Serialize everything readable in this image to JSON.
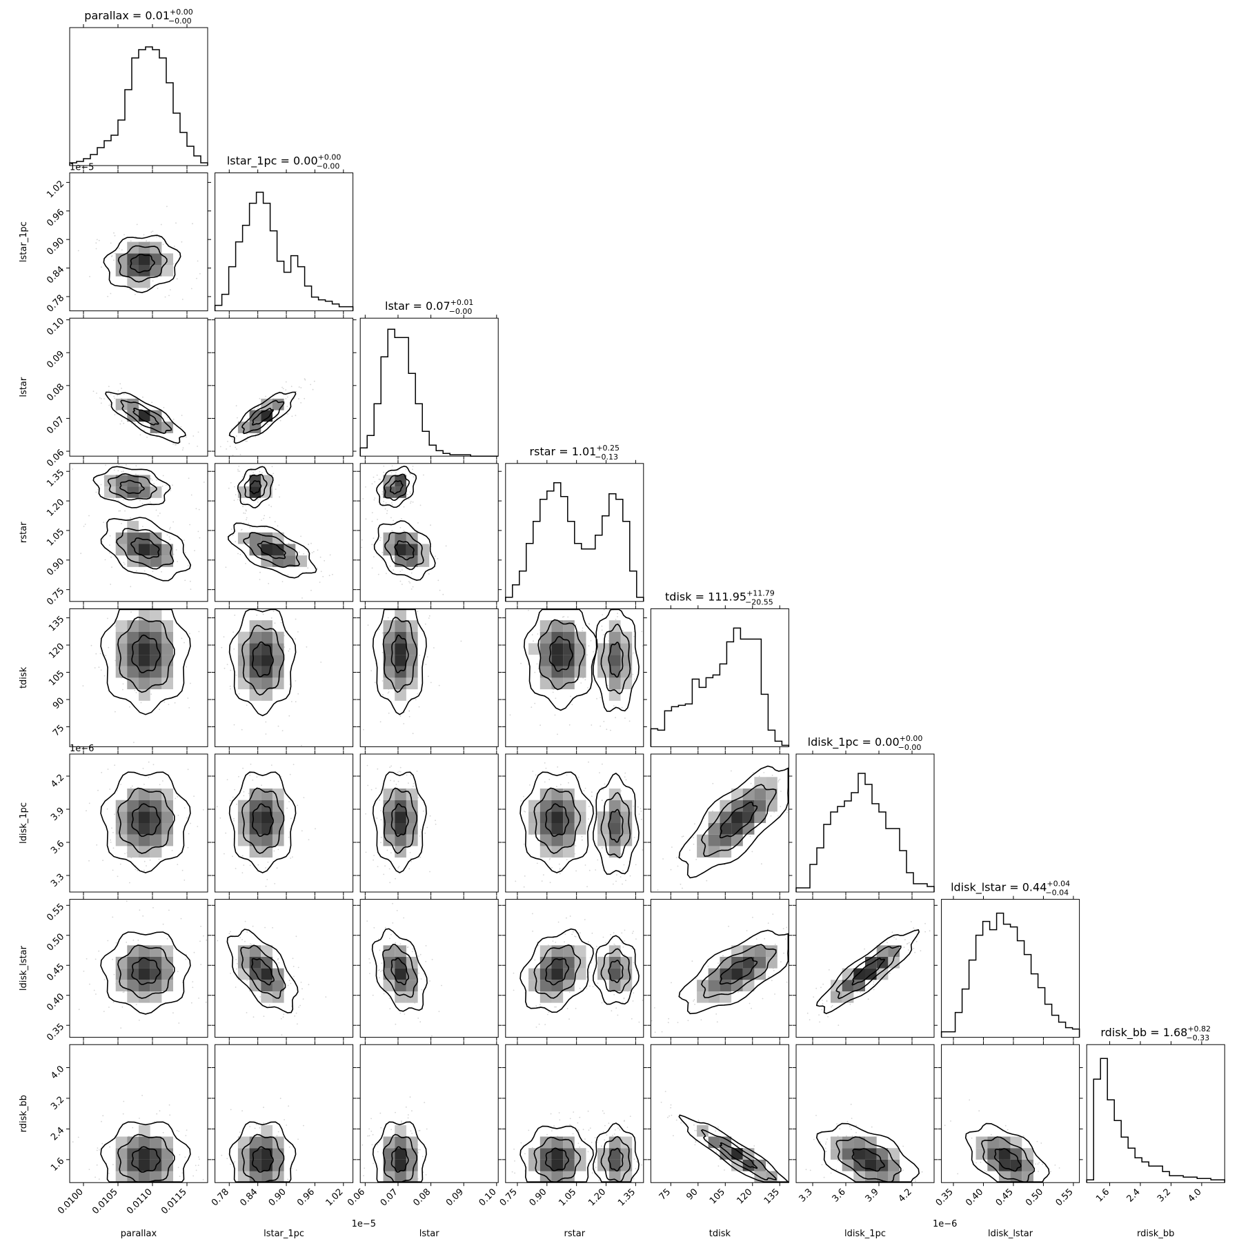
{
  "figure": {
    "params": [
      "parallax",
      "lstar_1pc",
      "lstar",
      "rstar",
      "tdisk",
      "ldisk_1pc",
      "ldisk_lstar",
      "rdisk_bb"
    ],
    "axis_labels": [
      "parallax",
      "lstar_1pc",
      "lstar",
      "rstar",
      "tdisk",
      "ldisk_1pc",
      "ldisk_lstar",
      "rdisk_bb"
    ]
  },
  "titles": [
    {
      "param": "parallax",
      "main": "parallax = 0.01",
      "sup": "+0.00",
      "sub": "−0.00"
    },
    {
      "param": "lstar_1pc",
      "main": "lstar_1pc = 0.00",
      "sup": "+0.00",
      "sub": "−0.00"
    },
    {
      "param": "lstar",
      "main": "lstar = 0.07",
      "sup": "+0.01",
      "sub": "−0.00"
    },
    {
      "param": "rstar",
      "main": "rstar = 1.01",
      "sup": "+0.25",
      "sub": "−0.13"
    },
    {
      "param": "tdisk",
      "main": "tdisk = 111.95",
      "sup": "+11.79",
      "sub": "−20.55"
    },
    {
      "param": "ldisk_1pc",
      "main": "ldisk_1pc = 0.00",
      "sup": "+0.00",
      "sub": "−0.00"
    },
    {
      "param": "ldisk_lstar",
      "main": "ldisk_lstar = 0.44",
      "sup": "+0.04",
      "sub": "−0.04"
    },
    {
      "param": "rdisk_bb",
      "main": "rdisk_bb = 1.68",
      "sup": "+0.82",
      "sub": "−0.33"
    }
  ],
  "offset_labels": {
    "lstar_1pc_y": "1e−5",
    "lstar_1pc_x": "1e−5",
    "ldisk_1pc_y": "1e−6",
    "ldisk_1pc_x": "1e−6"
  },
  "chart_data": {
    "type": "corner",
    "params": [
      "parallax",
      "lstar_1pc",
      "lstar",
      "rstar",
      "tdisk",
      "ldisk_1pc",
      "ldisk_lstar",
      "rdisk_bb"
    ],
    "ranges": {
      "parallax": [
        0.0098,
        0.0118
      ],
      "lstar_1pc": [
        7.5e-06,
        1.04e-05
      ],
      "lstar": [
        0.0585,
        0.1005
      ],
      "rstar": [
        0.69,
        1.39
      ],
      "tdisk": [
        64,
        140
      ],
      "ldisk_1pc": [
        3.15e-06,
        4.4e-06
      ],
      "ldisk_lstar": [
        0.33,
        0.56
      ],
      "rdisk_bb": [
        1.0,
        4.6
      ]
    },
    "ticks": {
      "parallax": {
        "values": [
          0.01,
          0.0105,
          0.011,
          0.0115
        ],
        "labels": [
          "0.0100",
          "0.0105",
          "0.0110",
          "0.0115"
        ]
      },
      "lstar_1pc": {
        "values": [
          7.8e-06,
          8.4e-06,
          9e-06,
          9.6e-06,
          1.02e-05
        ],
        "labels": [
          "0.78",
          "0.84",
          "0.90",
          "0.96",
          "1.02"
        ]
      },
      "lstar": {
        "values": [
          0.06,
          0.07,
          0.08,
          0.09,
          0.1
        ],
        "labels": [
          "0.06",
          "0.07",
          "0.08",
          "0.09",
          "0.10"
        ]
      },
      "rstar": {
        "values": [
          0.75,
          0.9,
          1.05,
          1.2,
          1.35
        ],
        "labels": [
          "0.75",
          "0.90",
          "1.05",
          "1.20",
          "1.35"
        ]
      },
      "tdisk": {
        "values": [
          75,
          90,
          105,
          120,
          135
        ],
        "labels": [
          "75",
          "90",
          "105",
          "120",
          "135"
        ]
      },
      "ldisk_1pc": {
        "values": [
          3.3e-06,
          3.6e-06,
          3.9e-06,
          4.2e-06
        ],
        "labels": [
          "3.3",
          "3.6",
          "3.9",
          "4.2"
        ]
      },
      "ldisk_lstar": {
        "values": [
          0.35,
          0.4,
          0.45,
          0.5,
          0.55
        ],
        "labels": [
          "0.35",
          "0.40",
          "0.45",
          "0.50",
          "0.55"
        ]
      },
      "rdisk_bb": {
        "values": [
          1.6,
          2.4,
          3.2,
          4.0
        ],
        "labels": [
          "1.6",
          "2.4",
          "3.2",
          "4.0"
        ]
      }
    },
    "histograms": {
      "parallax": [
        0.02,
        0.03,
        0.05,
        0.08,
        0.13,
        0.18,
        0.22,
        0.33,
        0.55,
        0.78,
        0.84,
        0.86,
        0.84,
        0.78,
        0.6,
        0.38,
        0.24,
        0.14,
        0.07,
        0.02
      ],
      "lstar_1pc": [
        0.04,
        0.12,
        0.32,
        0.5,
        0.62,
        0.78,
        0.86,
        0.78,
        0.58,
        0.36,
        0.28,
        0.4,
        0.32,
        0.18,
        0.1,
        0.08,
        0.07,
        0.05,
        0.03,
        0.03
      ],
      "lstar": [
        0.06,
        0.15,
        0.38,
        0.72,
        0.92,
        0.86,
        0.86,
        0.6,
        0.38,
        0.18,
        0.08,
        0.04,
        0.02,
        0.01,
        0.01,
        0.01,
        0.0,
        0.0,
        0.0,
        0.0
      ],
      "rstar": [
        0.03,
        0.12,
        0.22,
        0.42,
        0.58,
        0.74,
        0.8,
        0.86,
        0.76,
        0.58,
        0.42,
        0.38,
        0.38,
        0.48,
        0.62,
        0.78,
        0.74,
        0.58,
        0.22,
        0.03
      ],
      "tdisk": [
        0.13,
        0.12,
        0.26,
        0.29,
        0.3,
        0.31,
        0.49,
        0.43,
        0.5,
        0.52,
        0.6,
        0.76,
        0.86,
        0.78,
        0.78,
        0.78,
        0.38,
        0.12,
        0.04,
        0.01
      ],
      "ldisk_1pc": [
        0.03,
        0.03,
        0.2,
        0.32,
        0.49,
        0.58,
        0.62,
        0.66,
        0.72,
        0.86,
        0.78,
        0.64,
        0.58,
        0.46,
        0.46,
        0.3,
        0.14,
        0.06,
        0.06,
        0.04
      ],
      "ldisk_lstar": [
        0.04,
        0.04,
        0.18,
        0.35,
        0.56,
        0.74,
        0.84,
        0.78,
        0.9,
        0.82,
        0.8,
        0.7,
        0.6,
        0.46,
        0.36,
        0.24,
        0.16,
        0.11,
        0.07,
        0.06
      ],
      "rdisk_bb": [
        0.02,
        0.75,
        0.9,
        0.6,
        0.45,
        0.33,
        0.25,
        0.18,
        0.15,
        0.12,
        0.12,
        0.08,
        0.05,
        0.05,
        0.04,
        0.04,
        0.03,
        0.03,
        0.02,
        0.02
      ]
    },
    "peaks": {
      "lstar_1pc|parallax": [
        {
          "x": 0.01085,
          "y": 8.5e-06,
          "a": 1.0,
          "sx": 0.00024,
          "sy": 2.6e-07,
          "rho": 0.1
        }
      ],
      "lstar|parallax": [
        {
          "x": 0.0109,
          "y": 0.0705,
          "a": 1.0,
          "sx": 0.00025,
          "sy": 0.0034,
          "rho": -0.8
        }
      ],
      "lstar|lstar_1pc": [
        {
          "x": 8.5e-06,
          "y": 0.0705,
          "a": 1.0,
          "sx": 3e-07,
          "sy": 0.0034,
          "rho": 0.8
        }
      ],
      "rstar|parallax": [
        {
          "x": 0.0107,
          "y": 1.27,
          "a": 0.9,
          "sx": 0.00024,
          "sy": 0.045,
          "rho": -0.2
        },
        {
          "x": 0.0109,
          "y": 0.96,
          "a": 1.0,
          "sx": 0.00028,
          "sy": 0.07,
          "rho": -0.4
        }
      ],
      "rstar|lstar_1pc": [
        {
          "x": 8.35e-06,
          "y": 1.27,
          "a": 1.0,
          "sx": 1.6e-07,
          "sy": 0.045,
          "rho": 0.2
        },
        {
          "x": 8.7e-06,
          "y": 0.95,
          "a": 0.9,
          "sx": 4e-07,
          "sy": 0.06,
          "rho": -0.6
        }
      ],
      "rstar|lstar": [
        {
          "x": 0.0695,
          "y": 1.27,
          "a": 1.0,
          "sx": 0.0026,
          "sy": 0.045,
          "rho": 0.3
        },
        {
          "x": 0.072,
          "y": 0.95,
          "a": 0.9,
          "sx": 0.004,
          "sy": 0.065,
          "rho": -0.3
        }
      ],
      "tdisk|parallax": [
        {
          "x": 0.0109,
          "y": 115,
          "a": 1.0,
          "sx": 0.00028,
          "sy": 14,
          "rho": 0.0
        }
      ],
      "tdisk|lstar_1pc": [
        {
          "x": 8.5e-06,
          "y": 112,
          "a": 1.0,
          "sx": 3e-07,
          "sy": 13,
          "rho": 0.0
        }
      ],
      "tdisk|lstar": [
        {
          "x": 0.0705,
          "y": 115,
          "a": 1.0,
          "sx": 0.0035,
          "sy": 14,
          "rho": 0.0
        }
      ],
      "tdisk|rstar": [
        {
          "x": 0.97,
          "y": 115,
          "a": 1.0,
          "sx": 0.08,
          "sy": 13,
          "rho": 0.0
        },
        {
          "x": 1.25,
          "y": 112,
          "a": 0.75,
          "sx": 0.05,
          "sy": 13,
          "rho": 0.0
        }
      ],
      "ldisk_1pc|parallax": [
        {
          "x": 0.0109,
          "y": 3.8e-06,
          "a": 1.0,
          "sx": 0.00028,
          "sy": 2e-07,
          "rho": 0.0
        }
      ],
      "ldisk_1pc|lstar_1pc": [
        {
          "x": 8.5e-06,
          "y": 3.8e-06,
          "a": 1.0,
          "sx": 3e-07,
          "sy": 2e-07,
          "rho": 0.0
        }
      ],
      "ldisk_1pc|lstar": [
        {
          "x": 0.0705,
          "y": 3.8e-06,
          "a": 1.0,
          "sx": 0.0035,
          "sy": 2e-07,
          "rho": 0.0
        }
      ],
      "ldisk_1pc|rstar": [
        {
          "x": 0.95,
          "y": 3.8e-06,
          "a": 1.0,
          "sx": 0.08,
          "sy": 2e-07,
          "rho": 0.0
        },
        {
          "x": 1.25,
          "y": 3.75e-06,
          "a": 0.8,
          "sx": 0.05,
          "sy": 2e-07,
          "rho": 0.0
        }
      ],
      "ldisk_1pc|tdisk": [
        {
          "x": 112,
          "y": 3.8e-06,
          "a": 1.0,
          "sx": 14,
          "sy": 2.2e-07,
          "rho": 0.75
        }
      ],
      "ldisk_lstar|parallax": [
        {
          "x": 0.0109,
          "y": 0.44,
          "a": 1.0,
          "sx": 0.00028,
          "sy": 0.03,
          "rho": 0.0
        }
      ],
      "ldisk_lstar|lstar_1pc": [
        {
          "x": 8.5e-06,
          "y": 0.44,
          "a": 1.0,
          "sx": 3.2e-07,
          "sy": 0.03,
          "rho": -0.6
        }
      ],
      "ldisk_lstar|lstar": [
        {
          "x": 0.0705,
          "y": 0.44,
          "a": 1.0,
          "sx": 0.0036,
          "sy": 0.03,
          "rho": -0.4
        }
      ],
      "ldisk_lstar|rstar": [
        {
          "x": 0.95,
          "y": 0.44,
          "a": 1.0,
          "sx": 0.08,
          "sy": 0.03,
          "rho": 0.3
        },
        {
          "x": 1.25,
          "y": 0.44,
          "a": 0.8,
          "sx": 0.05,
          "sy": 0.025,
          "rho": 0.0
        }
      ],
      "ldisk_lstar|tdisk": [
        {
          "x": 112,
          "y": 0.44,
          "a": 1.0,
          "sx": 14,
          "sy": 0.03,
          "rho": 0.7
        }
      ],
      "ldisk_lstar|ldisk_1pc": [
        {
          "x": 3.8e-06,
          "y": 0.44,
          "a": 1.0,
          "sx": 2e-07,
          "sy": 0.03,
          "rho": 0.88
        }
      ],
      "rdisk_bb|parallax": [
        {
          "x": 0.0109,
          "y": 1.6,
          "a": 1.0,
          "sx": 0.00028,
          "sy": 0.45,
          "rho": 0.0
        }
      ],
      "rdisk_bb|lstar_1pc": [
        {
          "x": 8.5e-06,
          "y": 1.6,
          "a": 1.0,
          "sx": 3e-07,
          "sy": 0.45,
          "rho": 0.0
        }
      ],
      "rdisk_bb|lstar": [
        {
          "x": 0.0705,
          "y": 1.6,
          "a": 1.0,
          "sx": 0.0035,
          "sy": 0.45,
          "rho": 0.0
        }
      ],
      "rdisk_bb|rstar": [
        {
          "x": 0.95,
          "y": 1.6,
          "a": 1.0,
          "sx": 0.08,
          "sy": 0.4,
          "rho": 0.0
        },
        {
          "x": 1.25,
          "y": 1.6,
          "a": 0.8,
          "sx": 0.05,
          "sy": 0.4,
          "rho": 0.0
        }
      ],
      "rdisk_bb|tdisk": [
        {
          "x": 112,
          "y": 1.7,
          "a": 1.0,
          "sx": 14,
          "sy": 0.45,
          "rho": -0.93
        }
      ],
      "rdisk_bb|ldisk_1pc": [
        {
          "x": 3.8e-06,
          "y": 1.6,
          "a": 1.0,
          "sx": 2e-07,
          "sy": 0.4,
          "rho": -0.5
        }
      ],
      "rdisk_bb|ldisk_lstar": [
        {
          "x": 0.44,
          "y": 1.6,
          "a": 1.0,
          "sx": 0.03,
          "sy": 0.4,
          "rho": -0.5
        }
      ]
    }
  }
}
